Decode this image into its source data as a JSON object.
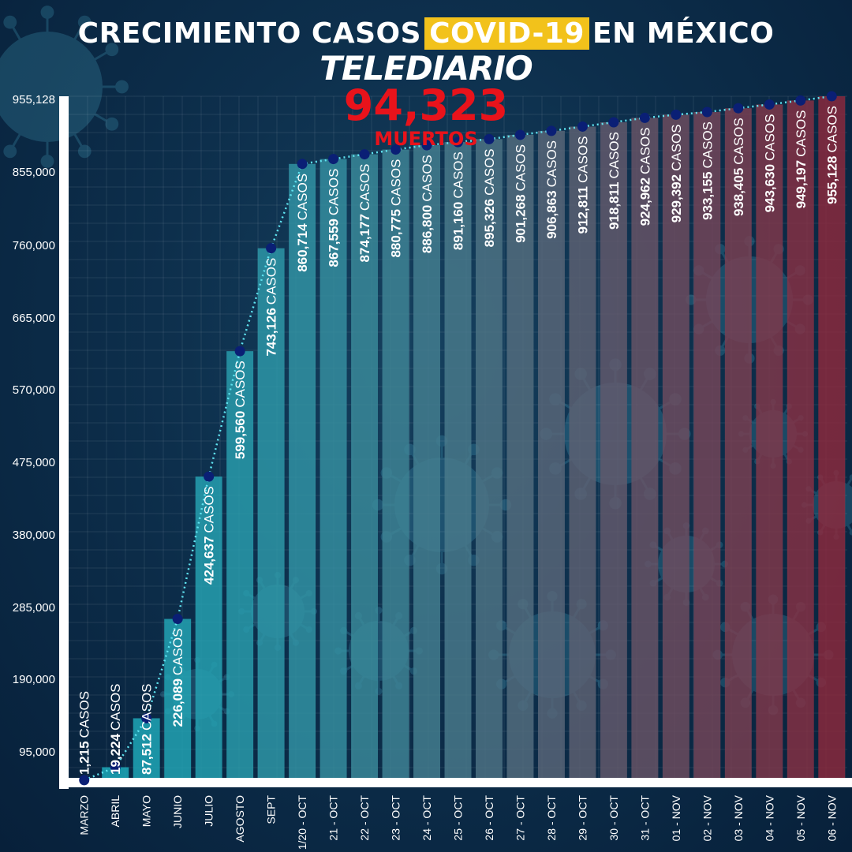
{
  "header": {
    "title_before": "CRECIMIENTO CASOS",
    "title_highlight": "COVID-19",
    "title_after": "EN MÉXICO",
    "brand": "TELEDIARIO"
  },
  "deaths": {
    "value": "94,323",
    "label": "MUERTOS"
  },
  "colors": {
    "highlight": "#f2c21b",
    "deaths": "#e8131b",
    "bar_teal": "#19a3b4",
    "bar_red": "#8a2c3f",
    "point": "#0a1f75",
    "line": "#5fe3f0"
  },
  "chart_data": {
    "type": "bar",
    "categories": [
      "MARZO",
      "ABRIL",
      "MAYO",
      "JUNIO",
      "JULIO",
      "AGOSTO",
      "SEPT",
      "1/20 - OCT",
      "21 - OCT",
      "22 - OCT",
      "23 - OCT",
      "24 - OCT",
      "25 - OCT",
      "26 - OCT",
      "27 - OCT",
      "28 - OCT",
      "29 - OCT",
      "30 - OCT",
      "31 - OCT",
      "01 - NOV",
      "02 - NOV",
      "03 - NOV",
      "04 - NOV",
      "05 - NOV",
      "06 - NOV"
    ],
    "values": [
      1215,
      19224,
      87512,
      226089,
      424637,
      599560,
      743126,
      860714,
      867559,
      874177,
      880775,
      886800,
      891160,
      895326,
      901268,
      906863,
      912811,
      918811,
      924962,
      929392,
      933155,
      938405,
      943630,
      949197,
      955128
    ],
    "bar_labels": [
      "1,215",
      "19,224",
      "87,512",
      "226,089",
      "424,637",
      "599,560",
      "743,126",
      "860,714",
      "867,559",
      "874,177",
      "880,775",
      "886,800",
      "891,160",
      "895,326",
      "901,268",
      "906,863",
      "912,811",
      "918,811",
      "924,962",
      "929,392",
      "933,155",
      "938,405",
      "943,630",
      "949,197",
      "955,128"
    ],
    "label_suffix": "CASOS",
    "y_ticks": [
      "955,128",
      "855,000",
      "760,000",
      "665,000",
      "570,000",
      "475,000",
      "380,000",
      "285,000",
      "190,000",
      "95,000"
    ],
    "ylim": [
      0,
      955128
    ],
    "grid": true,
    "title": "CRECIMIENTO CASOS COVID-19 EN MÉXICO",
    "xlabel": "",
    "ylabel": ""
  }
}
